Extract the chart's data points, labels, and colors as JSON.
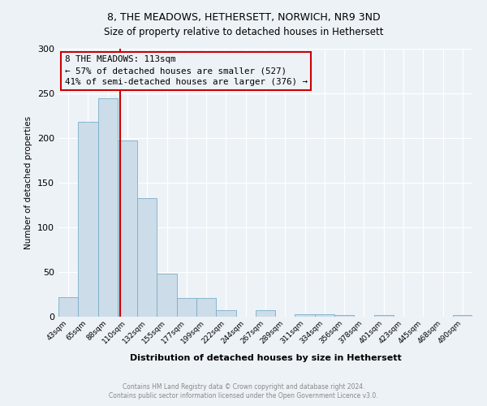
{
  "title": "8, THE MEADOWS, HETHERSETT, NORWICH, NR9 3ND",
  "subtitle": "Size of property relative to detached houses in Hethersett",
  "xlabel": "Distribution of detached houses by size in Hethersett",
  "ylabel": "Number of detached properties",
  "categories": [
    "43sqm",
    "65sqm",
    "88sqm",
    "110sqm",
    "132sqm",
    "155sqm",
    "177sqm",
    "199sqm",
    "222sqm",
    "244sqm",
    "267sqm",
    "289sqm",
    "311sqm",
    "334sqm",
    "356sqm",
    "378sqm",
    "401sqm",
    "423sqm",
    "445sqm",
    "468sqm",
    "490sqm"
  ],
  "values": [
    22,
    218,
    245,
    197,
    133,
    48,
    21,
    21,
    7,
    0,
    7,
    0,
    3,
    3,
    2,
    0,
    2,
    0,
    0,
    0,
    2
  ],
  "bar_color": "#ccdce8",
  "bar_edge_color": "#7aafc8",
  "annotation_box_edge": "#cc0000",
  "annotation_text_line1": "8 THE MEADOWS: 113sqm",
  "annotation_text_line2": "← 57% of detached houses are smaller (527)",
  "annotation_text_line3": "41% of semi-detached houses are larger (376) →",
  "red_line_x": 2.636,
  "ylim": [
    0,
    300
  ],
  "yticks": [
    0,
    50,
    100,
    150,
    200,
    250,
    300
  ],
  "footer_line1": "Contains HM Land Registry data © Crown copyright and database right 2024.",
  "footer_line2": "Contains public sector information licensed under the Open Government Licence v3.0.",
  "background_color": "#edf2f7",
  "title_fontsize": 9,
  "subtitle_fontsize": 8.5
}
